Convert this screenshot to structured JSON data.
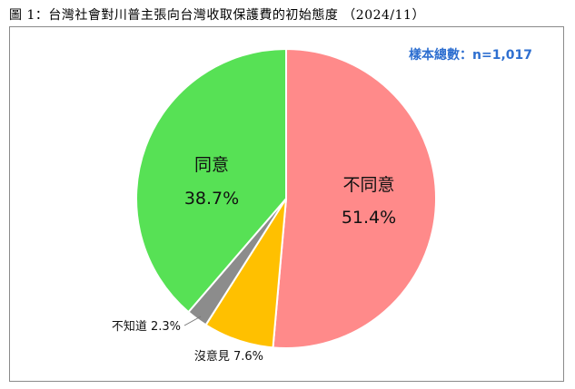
{
  "figure": {
    "title": "圖 1：台灣社會對川普主張向台灣收取保護費的初始態度 （2024/11）",
    "sample_note": "樣本總數：n=1,017"
  },
  "chart_data": {
    "type": "pie",
    "title": "台灣社會對川普主張向台灣收取保護費的初始態度 （2024/11）",
    "slices": [
      {
        "label": "不同意",
        "value": 51.4,
        "value_text": "51.4%",
        "color": "#ff8a8a",
        "label_position": "inside"
      },
      {
        "label": "沒意見",
        "value": 7.6,
        "value_text": "7.6%",
        "color": "#ffc000",
        "label_position": "outside"
      },
      {
        "label": "不知道",
        "value": 2.3,
        "value_text": "2.3%",
        "color": "#8c8c8c",
        "label_position": "outside"
      },
      {
        "label": "同意",
        "value": 38.7,
        "value_text": "38.7%",
        "color": "#57e155",
        "label_position": "inside"
      }
    ],
    "start": "12 o'clock",
    "direction": "clockwise",
    "legend": "none"
  }
}
